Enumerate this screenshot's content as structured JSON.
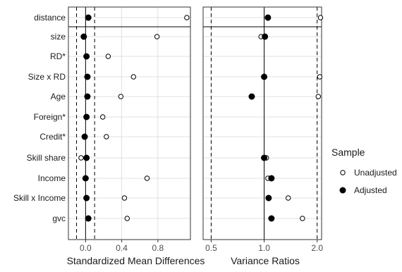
{
  "chart_data": {
    "type": "scatter",
    "categories": [
      "distance",
      "size",
      "RD*",
      "Size x RD",
      "Age",
      "Foreign*",
      "Credit*",
      "Skill share",
      "Income",
      "Skill x Income",
      "gvc"
    ],
    "panels": [
      {
        "xlabel": "Standardized Mean Differences",
        "xlim": [
          -0.19,
          1.16
        ],
        "xticks": [
          0.0,
          0.4,
          0.8
        ],
        "xtick_labels": [
          "0.0",
          "0.4",
          "0.8"
        ],
        "reference_line": 0.0,
        "threshold_lines": [
          -0.1,
          0.1
        ],
        "series": [
          {
            "name": "Unadjusted",
            "values": [
              1.12,
              0.79,
              0.25,
              0.53,
              0.39,
              0.19,
              0.23,
              -0.05,
              0.68,
              0.43,
              0.46
            ]
          },
          {
            "name": "Adjusted",
            "values": [
              0.03,
              -0.02,
              0.01,
              0.02,
              0.02,
              0.01,
              -0.01,
              0.01,
              0.0,
              0.01,
              0.03
            ]
          }
        ]
      },
      {
        "xlabel": "Variance Ratios",
        "xlim": [
          0.45,
          2.12
        ],
        "xticks": [
          0.5,
          1.0,
          2.0
        ],
        "xtick_labels": [
          "0.5",
          "1.0",
          "2.0"
        ],
        "reference_line": 1.0,
        "threshold_lines": [
          0.5,
          2.0
        ],
        "series": [
          {
            "name": "Unadjusted",
            "values": [
              2.09,
              0.96,
              null,
              2.07,
              2.03,
              null,
              null,
              1.03,
              1.05,
              1.37,
              1.65
            ]
          },
          {
            "name": "Adjusted",
            "values": [
              1.05,
              1.01,
              null,
              1.0,
              0.85,
              null,
              null,
              1.0,
              1.1,
              1.06,
              1.1
            ]
          }
        ]
      }
    ],
    "legend": {
      "title": "Sample",
      "placement": "right",
      "entries": [
        {
          "label": "Unadjusted",
          "marker": "open-circle"
        },
        {
          "label": "Adjusted",
          "marker": "filled-circle"
        }
      ]
    },
    "grid": true,
    "colors": {
      "marker": "#000000",
      "grid": "#d9d9d9",
      "panel_border": "#333333",
      "background": "#ffffff"
    }
  }
}
